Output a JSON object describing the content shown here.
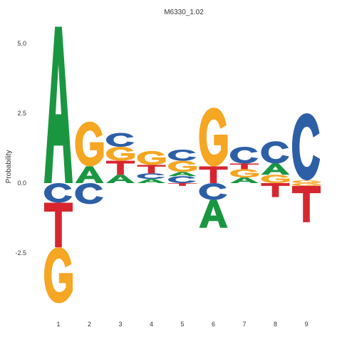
{
  "chart_data": {
    "type": "sequence-logo",
    "title": "M6330_1.02",
    "xlabel": "",
    "ylabel": "Probability",
    "ylim": [
      -4.3,
      5.6
    ],
    "yticks": [
      5.0,
      2.5,
      0.0,
      -2.5
    ],
    "ytick_labels": [
      "5.0",
      "2.5",
      "0.0",
      "-2.5"
    ],
    "positions": [
      "1",
      "2",
      "3",
      "4",
      "5",
      "6",
      "7",
      "8",
      "9"
    ],
    "grid": false,
    "legend": "none",
    "colors": {
      "A": "#1a9641",
      "C": "#2c5fa6",
      "G": "#f5a623",
      "T": "#d7262f"
    },
    "columns": [
      {
        "above": [
          {
            "letter": "A",
            "height": 5.6
          }
        ],
        "below": [
          {
            "letter": "C",
            "height": 0.7
          },
          {
            "letter": "T",
            "height": 1.6
          },
          {
            "letter": "G",
            "height": 2.0
          }
        ]
      },
      {
        "above": [
          {
            "letter": "A",
            "height": 0.6
          },
          {
            "letter": "G",
            "height": 1.6
          }
        ],
        "below": [
          {
            "letter": "C",
            "height": 0.75
          }
        ]
      },
      {
        "above": [
          {
            "letter": "A",
            "height": 0.3
          },
          {
            "letter": "T",
            "height": 0.5
          },
          {
            "letter": "G",
            "height": 0.5
          },
          {
            "letter": "C",
            "height": 0.5
          }
        ],
        "below": []
      },
      {
        "above": [
          {
            "letter": "A",
            "height": 0.15
          },
          {
            "letter": "C",
            "height": 0.2
          },
          {
            "letter": "T",
            "height": 0.3
          },
          {
            "letter": "G",
            "height": 0.5
          }
        ],
        "below": []
      },
      {
        "above": [
          {
            "letter": "C",
            "height": 0.25
          },
          {
            "letter": "A",
            "height": 0.15
          },
          {
            "letter": "G",
            "height": 0.4
          },
          {
            "letter": "C",
            "height": 0.4
          }
        ],
        "below": [
          {
            "letter": "T",
            "height": 0.1
          }
        ]
      },
      {
        "above": [
          {
            "letter": "T",
            "height": 0.6
          },
          {
            "letter": "G",
            "height": 2.1
          }
        ],
        "below": [
          {
            "letter": "C",
            "height": 0.6
          },
          {
            "letter": "A",
            "height": 1.0
          }
        ]
      },
      {
        "above": [
          {
            "letter": "A",
            "height": 0.2
          },
          {
            "letter": "G",
            "height": 0.3
          },
          {
            "letter": "T",
            "height": 0.2
          },
          {
            "letter": "C",
            "height": 0.6
          }
        ],
        "below": []
      },
      {
        "above": [
          {
            "letter": "G",
            "height": 0.3
          },
          {
            "letter": "A",
            "height": 0.4
          },
          {
            "letter": "C",
            "height": 0.8
          }
        ],
        "below": [
          {
            "letter": "T",
            "height": 0.5
          }
        ]
      },
      {
        "above": [
          {
            "letter": "G",
            "height": 0.1
          },
          {
            "letter": "C",
            "height": 2.4
          }
        ],
        "below": [
          {
            "letter": "G",
            "height": 0.1
          },
          {
            "letter": "T",
            "height": 1.3
          }
        ]
      }
    ]
  }
}
